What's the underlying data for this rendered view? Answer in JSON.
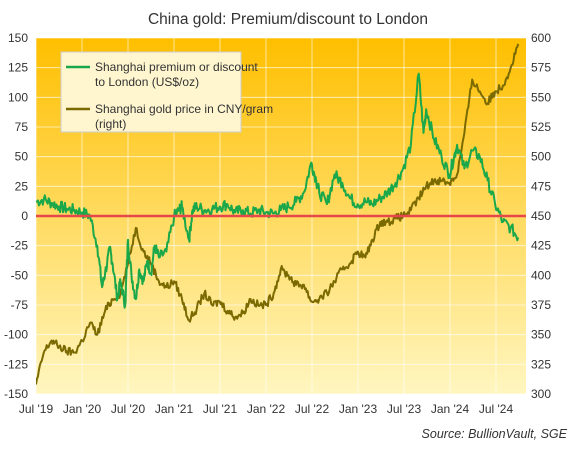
{
  "chart_data": {
    "type": "line",
    "title": "China gold: Premium/discount  to London",
    "source": "Source:  BullionVault, SGE",
    "x_tick_labels": [
      "Jul '19",
      "Jan '20",
      "Jul '20",
      "Jan '21",
      "Jul '21",
      "Jan '22",
      "Jul '22",
      "Jan '23",
      "Jul '23",
      "Jan '24",
      "Jul '24"
    ],
    "x_range": [
      "2019-07-01",
      "2024-11-01"
    ],
    "y_left": {
      "min": -150,
      "max": 150,
      "ticks": [
        -150,
        -125,
        -100,
        -75,
        -50,
        -25,
        0,
        25,
        50,
        75,
        100,
        125,
        150
      ]
    },
    "y_right": {
      "min": 300,
      "max": 600,
      "ticks": [
        300,
        325,
        350,
        375,
        400,
        425,
        450,
        475,
        500,
        525,
        550,
        575,
        600
      ]
    },
    "grid": true,
    "zero_line": {
      "value": 0,
      "color": "#e8474a"
    },
    "legend_placement": "top-left",
    "background_gradient": [
      "#ffbf00",
      "#fff6c0"
    ],
    "series": [
      {
        "name": "Shanghai premium or discount to London (US$/oz)",
        "axis": "left",
        "color": "#1aa84a",
        "points": [
          [
            "2019-07-01",
            12
          ],
          [
            "2019-08-01",
            14
          ],
          [
            "2019-09-01",
            11
          ],
          [
            "2019-10-01",
            8
          ],
          [
            "2019-11-01",
            6
          ],
          [
            "2019-12-01",
            5
          ],
          [
            "2020-01-01",
            3
          ],
          [
            "2020-02-01",
            0
          ],
          [
            "2020-03-01",
            -25
          ],
          [
            "2020-03-20",
            -60
          ],
          [
            "2020-04-01",
            -48
          ],
          [
            "2020-04-20",
            -28
          ],
          [
            "2020-05-01",
            -40
          ],
          [
            "2020-05-20",
            -70
          ],
          [
            "2020-06-01",
            -55
          ],
          [
            "2020-06-20",
            -75
          ],
          [
            "2020-07-01",
            -20
          ],
          [
            "2020-07-15",
            -50
          ],
          [
            "2020-08-01",
            -70
          ],
          [
            "2020-08-15",
            -45
          ],
          [
            "2020-09-01",
            -55
          ],
          [
            "2020-09-15",
            -38
          ],
          [
            "2020-10-01",
            -48
          ],
          [
            "2020-10-15",
            -25
          ],
          [
            "2020-11-01",
            -35
          ],
          [
            "2020-12-01",
            -30
          ],
          [
            "2021-01-01",
            0
          ],
          [
            "2021-01-20",
            5
          ],
          [
            "2021-02-01",
            8
          ],
          [
            "2021-03-01",
            -20
          ],
          [
            "2021-03-15",
            5
          ],
          [
            "2021-04-01",
            8
          ],
          [
            "2021-05-01",
            5
          ],
          [
            "2021-06-01",
            6
          ],
          [
            "2021-07-01",
            8
          ],
          [
            "2021-08-01",
            10
          ],
          [
            "2021-09-01",
            3
          ],
          [
            "2021-10-01",
            5
          ],
          [
            "2021-11-01",
            2
          ],
          [
            "2021-12-01",
            5
          ],
          [
            "2022-01-01",
            3
          ],
          [
            "2022-02-01",
            2
          ],
          [
            "2022-03-01",
            5
          ],
          [
            "2022-04-01",
            8
          ],
          [
            "2022-05-01",
            12
          ],
          [
            "2022-06-01",
            20
          ],
          [
            "2022-07-01",
            45
          ],
          [
            "2022-07-20",
            30
          ],
          [
            "2022-08-01",
            20
          ],
          [
            "2022-09-01",
            10
          ],
          [
            "2022-10-01",
            35
          ],
          [
            "2022-11-01",
            28
          ],
          [
            "2022-12-01",
            15
          ],
          [
            "2023-01-01",
            10
          ],
          [
            "2023-02-01",
            12
          ],
          [
            "2023-03-01",
            10
          ],
          [
            "2023-04-01",
            15
          ],
          [
            "2023-05-01",
            20
          ],
          [
            "2023-06-01",
            28
          ],
          [
            "2023-07-01",
            40
          ],
          [
            "2023-08-01",
            60
          ],
          [
            "2023-09-01",
            120
          ],
          [
            "2023-09-20",
            70
          ],
          [
            "2023-10-01",
            90
          ],
          [
            "2023-11-01",
            65
          ],
          [
            "2023-12-01",
            50
          ],
          [
            "2024-01-01",
            35
          ],
          [
            "2024-01-20",
            50
          ],
          [
            "2024-02-01",
            60
          ],
          [
            "2024-03-01",
            40
          ],
          [
            "2024-04-01",
            55
          ],
          [
            "2024-05-01",
            50
          ],
          [
            "2024-06-01",
            30
          ],
          [
            "2024-07-01",
            10
          ],
          [
            "2024-08-01",
            -5
          ],
          [
            "2024-09-01",
            -10
          ],
          [
            "2024-10-01",
            -18
          ]
        ]
      },
      {
        "name": "Shanghai gold price in CNY/gram (right)",
        "axis": "right",
        "color": "#7a6a00",
        "points": [
          [
            "2019-07-01",
            308
          ],
          [
            "2019-08-01",
            335
          ],
          [
            "2019-09-01",
            345
          ],
          [
            "2019-10-01",
            340
          ],
          [
            "2019-11-01",
            336
          ],
          [
            "2019-12-01",
            335
          ],
          [
            "2020-01-01",
            345
          ],
          [
            "2020-02-01",
            360
          ],
          [
            "2020-03-01",
            350
          ],
          [
            "2020-04-01",
            370
          ],
          [
            "2020-05-01",
            380
          ],
          [
            "2020-06-01",
            385
          ],
          [
            "2020-07-01",
            410
          ],
          [
            "2020-08-01",
            440
          ],
          [
            "2020-09-01",
            420
          ],
          [
            "2020-10-01",
            410
          ],
          [
            "2020-11-01",
            395
          ],
          [
            "2020-12-01",
            390
          ],
          [
            "2021-01-01",
            395
          ],
          [
            "2021-02-01",
            380
          ],
          [
            "2021-03-01",
            362
          ],
          [
            "2021-04-01",
            372
          ],
          [
            "2021-05-01",
            385
          ],
          [
            "2021-06-01",
            375
          ],
          [
            "2021-07-01",
            378
          ],
          [
            "2021-08-01",
            370
          ],
          [
            "2021-09-01",
            365
          ],
          [
            "2021-10-01",
            368
          ],
          [
            "2021-11-01",
            380
          ],
          [
            "2021-12-01",
            375
          ],
          [
            "2022-01-01",
            375
          ],
          [
            "2022-02-01",
            385
          ],
          [
            "2022-03-01",
            405
          ],
          [
            "2022-04-01",
            400
          ],
          [
            "2022-05-01",
            392
          ],
          [
            "2022-06-01",
            392
          ],
          [
            "2022-07-01",
            378
          ],
          [
            "2022-08-01",
            380
          ],
          [
            "2022-09-01",
            385
          ],
          [
            "2022-10-01",
            395
          ],
          [
            "2022-11-01",
            405
          ],
          [
            "2022-12-01",
            410
          ],
          [
            "2023-01-01",
            420
          ],
          [
            "2023-02-01",
            415
          ],
          [
            "2023-03-01",
            430
          ],
          [
            "2023-04-01",
            445
          ],
          [
            "2023-05-01",
            445
          ],
          [
            "2023-06-01",
            448
          ],
          [
            "2023-07-01",
            450
          ],
          [
            "2023-08-01",
            455
          ],
          [
            "2023-09-01",
            465
          ],
          [
            "2023-10-01",
            475
          ],
          [
            "2023-11-01",
            480
          ],
          [
            "2023-12-01",
            480
          ],
          [
            "2024-01-01",
            478
          ],
          [
            "2024-02-01",
            485
          ],
          [
            "2024-03-01",
            520
          ],
          [
            "2024-04-01",
            565
          ],
          [
            "2024-05-01",
            555
          ],
          [
            "2024-06-01",
            545
          ],
          [
            "2024-07-01",
            555
          ],
          [
            "2024-08-01",
            560
          ],
          [
            "2024-09-01",
            575
          ],
          [
            "2024-10-01",
            595
          ]
        ]
      }
    ]
  }
}
